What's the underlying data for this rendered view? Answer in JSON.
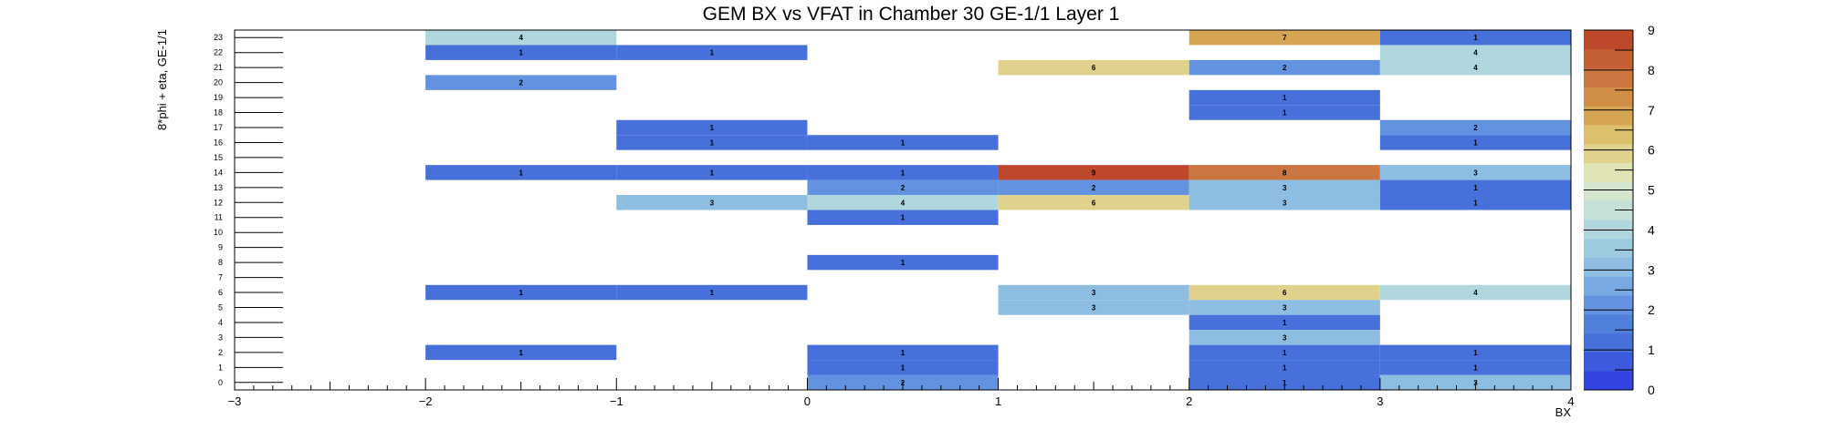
{
  "chart_data": {
    "type": "heatmap",
    "title": "GEM BX vs VFAT in Chamber 30 GE-1/1 Layer 1",
    "xlabel": "BX",
    "ylabel": "8*phi + eta, GE-1/1",
    "xlim": [
      -3,
      4
    ],
    "ylim": [
      0,
      24
    ],
    "x_ticks": [
      -3,
      -2,
      -1,
      0,
      1,
      2,
      3,
      4
    ],
    "x_tick_labels": [
      "−3",
      "−2",
      "−1",
      "0",
      "1",
      "2",
      "3",
      "4"
    ],
    "y_tick_labels": [
      "0",
      "1",
      "2",
      "3",
      "4",
      "5",
      "6",
      "7",
      "8",
      "9",
      "10",
      "11",
      "12",
      "13",
      "14",
      "15",
      "16",
      "17",
      "18",
      "19",
      "20",
      "21",
      "22",
      "23"
    ],
    "zlim": [
      0,
      9
    ],
    "z_ticks": [
      0,
      1,
      2,
      3,
      4,
      5,
      6,
      7,
      8,
      9
    ],
    "palette": [
      "#3245e0",
      "#3d59dd",
      "#4770da",
      "#5080db",
      "#6393e0",
      "#7aa8e3",
      "#8ebde2",
      "#9ccbe0",
      "#b0d7de",
      "#c4e0d8",
      "#d3e5cd",
      "#e0e3b3",
      "#e0d28c",
      "#ddc06c",
      "#d6a553",
      "#d18e47",
      "#cb7640",
      "#c45f35",
      "#bd482c"
    ],
    "cells": [
      {
        "x": -2,
        "y": 23,
        "v": 4
      },
      {
        "x": 2,
        "y": 23,
        "v": 7
      },
      {
        "x": 3,
        "y": 23,
        "v": 1
      },
      {
        "x": -2,
        "y": 22,
        "v": 1
      },
      {
        "x": -1,
        "y": 22,
        "v": 1
      },
      {
        "x": 3,
        "y": 22,
        "v": 4
      },
      {
        "x": 1,
        "y": 21,
        "v": 6
      },
      {
        "x": 2,
        "y": 21,
        "v": 2
      },
      {
        "x": 3,
        "y": 21,
        "v": 4
      },
      {
        "x": -2,
        "y": 20,
        "v": 2
      },
      {
        "x": 2,
        "y": 19,
        "v": 1
      },
      {
        "x": 2,
        "y": 18,
        "v": 1
      },
      {
        "x": -1,
        "y": 17,
        "v": 1
      },
      {
        "x": 3,
        "y": 17,
        "v": 2
      },
      {
        "x": -1,
        "y": 16,
        "v": 1
      },
      {
        "x": 0,
        "y": 16,
        "v": 1
      },
      {
        "x": 3,
        "y": 16,
        "v": 1
      },
      {
        "x": -2,
        "y": 14,
        "v": 1
      },
      {
        "x": -1,
        "y": 14,
        "v": 1
      },
      {
        "x": 0,
        "y": 14,
        "v": 1
      },
      {
        "x": 1,
        "y": 14,
        "v": 9
      },
      {
        "x": 2,
        "y": 14,
        "v": 8
      },
      {
        "x": 3,
        "y": 14,
        "v": 3
      },
      {
        "x": 0,
        "y": 13,
        "v": 2
      },
      {
        "x": 1,
        "y": 13,
        "v": 2
      },
      {
        "x": 2,
        "y": 13,
        "v": 3
      },
      {
        "x": 3,
        "y": 13,
        "v": 1
      },
      {
        "x": -1,
        "y": 12,
        "v": 3
      },
      {
        "x": 0,
        "y": 12,
        "v": 4
      },
      {
        "x": 1,
        "y": 12,
        "v": 6
      },
      {
        "x": 2,
        "y": 12,
        "v": 3
      },
      {
        "x": 3,
        "y": 12,
        "v": 1
      },
      {
        "x": 0,
        "y": 11,
        "v": 1
      },
      {
        "x": 0,
        "y": 8,
        "v": 1
      },
      {
        "x": -2,
        "y": 6,
        "v": 1
      },
      {
        "x": -1,
        "y": 6,
        "v": 1
      },
      {
        "x": 1,
        "y": 6,
        "v": 3
      },
      {
        "x": 2,
        "y": 6,
        "v": 6
      },
      {
        "x": 3,
        "y": 6,
        "v": 4
      },
      {
        "x": 1,
        "y": 5,
        "v": 3
      },
      {
        "x": 2,
        "y": 5,
        "v": 3
      },
      {
        "x": 2,
        "y": 4,
        "v": 1
      },
      {
        "x": 2,
        "y": 3,
        "v": 3
      },
      {
        "x": -2,
        "y": 2,
        "v": 1
      },
      {
        "x": 0,
        "y": 2,
        "v": 1
      },
      {
        "x": 2,
        "y": 2,
        "v": 1
      },
      {
        "x": 3,
        "y": 2,
        "v": 1
      },
      {
        "x": 0,
        "y": 1,
        "v": 1
      },
      {
        "x": 2,
        "y": 1,
        "v": 1
      },
      {
        "x": 3,
        "y": 1,
        "v": 1
      },
      {
        "x": 0,
        "y": 0,
        "v": 2
      },
      {
        "x": 2,
        "y": 0,
        "v": 1
      },
      {
        "x": 3,
        "y": 0,
        "v": 3
      }
    ]
  }
}
